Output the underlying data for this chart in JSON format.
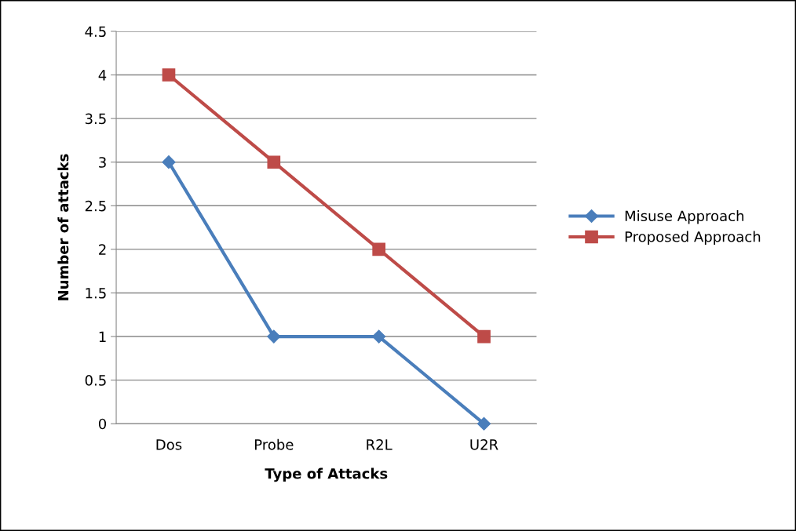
{
  "chart_data": {
    "type": "line",
    "xlabel": "Type of Attacks",
    "ylabel": "Number of attacks",
    "categories": [
      "Dos",
      "Probe",
      "R2L",
      "U2R"
    ],
    "series": [
      {
        "name": "Misuse Approach",
        "color": "#4a7ebb",
        "marker": "diamond",
        "values": [
          3,
          1,
          1,
          0
        ]
      },
      {
        "name": "Proposed Approach",
        "color": "#be4b48",
        "marker": "square",
        "values": [
          4,
          3,
          2,
          1
        ]
      }
    ],
    "ylim": [
      0,
      4.5
    ],
    "yticks": [
      0,
      0.5,
      1,
      1.5,
      2,
      2.5,
      3,
      3.5,
      4,
      4.5
    ],
    "grid": "y",
    "legend": "right",
    "line_style": "solid"
  }
}
